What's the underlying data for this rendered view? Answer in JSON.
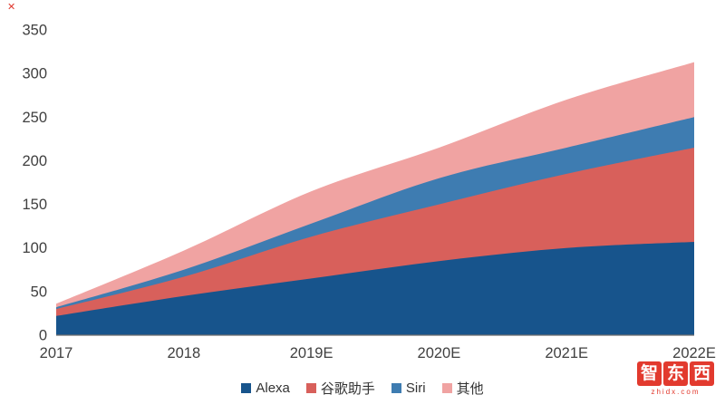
{
  "corner_mark": "✕",
  "chart_data": {
    "type": "area",
    "stacked": true,
    "title": "",
    "xlabel": "",
    "ylabel": "",
    "categories": [
      "2017",
      "2018",
      "2019E",
      "2020E",
      "2021E",
      "2022E"
    ],
    "series": [
      {
        "key": "alexa",
        "name": "Alexa",
        "color": "#17548c",
        "values": [
          22,
          45,
          65,
          85,
          100,
          107
        ]
      },
      {
        "key": "google-assistant",
        "name": "谷歌助手",
        "color": "#d8605b",
        "values": [
          8,
          22,
          48,
          65,
          85,
          108
        ]
      },
      {
        "key": "siri",
        "name": "Siri",
        "color": "#3e7cb1",
        "values": [
          2,
          8,
          15,
          30,
          30,
          35
        ]
      },
      {
        "key": "other",
        "name": "其他",
        "color": "#f0a3a2",
        "values": [
          4,
          22,
          37,
          35,
          55,
          63
        ]
      }
    ],
    "cumulative_totals": [
      36,
      97,
      165,
      215,
      270,
      313
    ],
    "ylim": [
      0,
      350
    ],
    "ytick_step": 50,
    "yticks": [
      0,
      50,
      100,
      150,
      200,
      250,
      300,
      350
    ],
    "grid": false,
    "legend_position": "bottom"
  },
  "watermark": {
    "text": "智东西",
    "chars": [
      "智",
      "东",
      "西"
    ],
    "subtext": "zhidx.com",
    "color": "#e23a2e"
  }
}
